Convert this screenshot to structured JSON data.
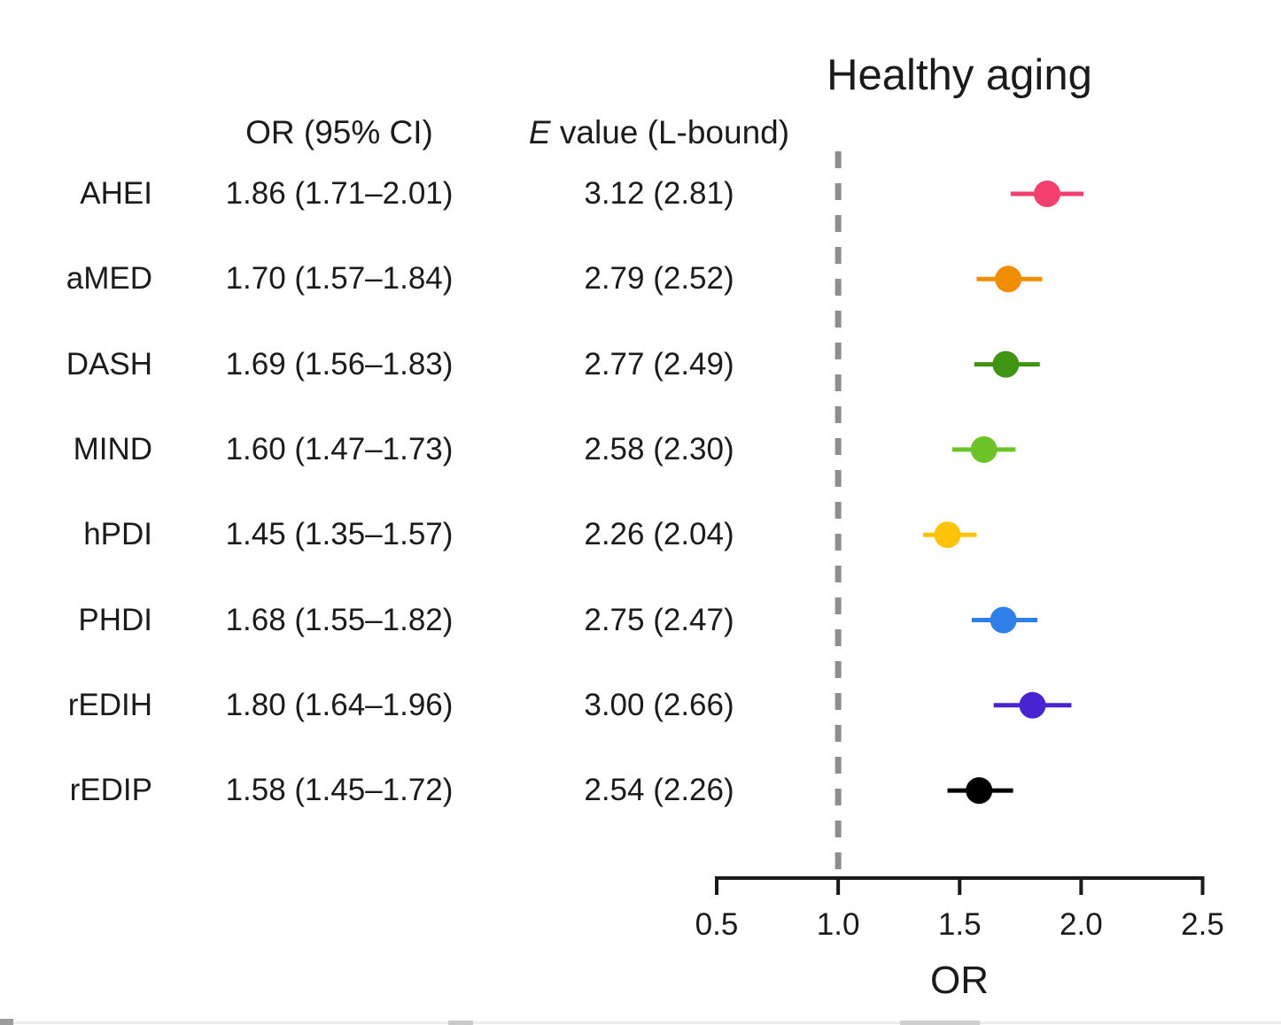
{
  "title": "Healthy aging",
  "headers": {
    "or": "OR (95% CI)",
    "evalue_italic": "E",
    "evalue_rest": " value (L-bound)"
  },
  "axis": {
    "label": "OR",
    "tick_labels": [
      "0.5",
      "1.0",
      "1.5",
      "2.0",
      "2.5"
    ]
  },
  "chart_data": {
    "type": "scatter",
    "subtype": "forest-plot-dot-with-ci",
    "title": "Healthy aging",
    "xlabel": "OR",
    "xlim": [
      0.5,
      2.5
    ],
    "xticks": [
      0.5,
      1.0,
      1.5,
      2.0,
      2.5
    ],
    "reference_line_x": 1.0,
    "reference_line_style": "dashed",
    "reference_line_color": "#8E8E8E",
    "grid": false,
    "legend": false,
    "rows": [
      {
        "label": "AHEI",
        "or": 1.86,
        "ci_low": 1.71,
        "ci_high": 2.01,
        "or_ci_text": "1.86 (1.71–2.01)",
        "evalue": 3.12,
        "evalue_lbound": 2.81,
        "evalue_text": "3.12 (2.81)",
        "color": "#F2406E"
      },
      {
        "label": "aMED",
        "or": 1.7,
        "ci_low": 1.57,
        "ci_high": 1.84,
        "or_ci_text": "1.70 (1.57–1.84)",
        "evalue": 2.79,
        "evalue_lbound": 2.52,
        "evalue_text": "2.79 (2.52)",
        "color": "#F28C00"
      },
      {
        "label": "DASH",
        "or": 1.69,
        "ci_low": 1.56,
        "ci_high": 1.83,
        "or_ci_text": "1.69 (1.56–1.83)",
        "evalue": 2.77,
        "evalue_lbound": 2.49,
        "evalue_text": "2.77 (2.49)",
        "color": "#3F9414"
      },
      {
        "label": "MIND",
        "or": 1.6,
        "ci_low": 1.47,
        "ci_high": 1.73,
        "or_ci_text": "1.60 (1.47–1.73)",
        "evalue": 2.58,
        "evalue_lbound": 2.3,
        "evalue_text": "2.58 (2.30)",
        "color": "#6DC328"
      },
      {
        "label": "hPDI",
        "or": 1.45,
        "ci_low": 1.35,
        "ci_high": 1.57,
        "or_ci_text": "1.45 (1.35–1.57)",
        "evalue": 2.26,
        "evalue_lbound": 2.04,
        "evalue_text": "2.26 (2.04)",
        "color": "#FFC40A"
      },
      {
        "label": "PHDI",
        "or": 1.68,
        "ci_low": 1.55,
        "ci_high": 1.82,
        "or_ci_text": "1.68 (1.55–1.82)",
        "evalue": 2.75,
        "evalue_lbound": 2.47,
        "evalue_text": "2.75 (2.47)",
        "color": "#2E80E8"
      },
      {
        "label": "rEDIH",
        "or": 1.8,
        "ci_low": 1.64,
        "ci_high": 1.96,
        "or_ci_text": "1.80 (1.64–1.96)",
        "evalue": 3.0,
        "evalue_lbound": 2.66,
        "evalue_text": "3.00 (2.66)",
        "color": "#4823D0"
      },
      {
        "label": "rEDIP",
        "or": 1.58,
        "ci_low": 1.45,
        "ci_high": 1.72,
        "or_ci_text": "1.58 (1.45–1.72)",
        "evalue": 2.54,
        "evalue_lbound": 2.26,
        "evalue_text": "2.54 (2.26)",
        "color": "#000000"
      }
    ]
  }
}
